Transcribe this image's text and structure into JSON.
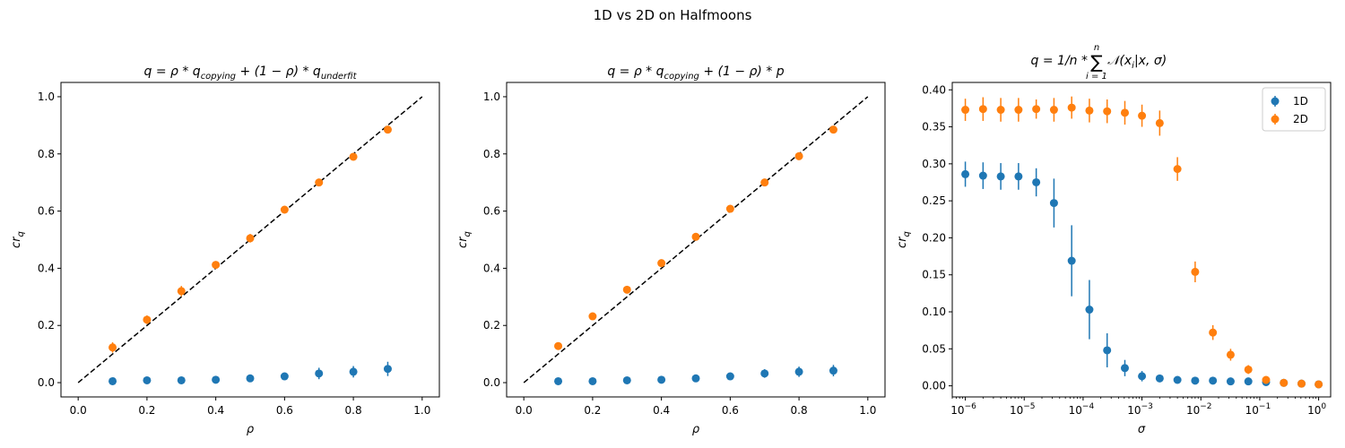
{
  "figure": {
    "suptitle": "1D vs 2D on Halfmoons",
    "colors": {
      "1D": "#1f77b4",
      "2D": "#ff7f0e",
      "reference": "#000000"
    }
  },
  "chart_data": [
    {
      "type": "scatter",
      "title": "q = ρ * q_copying + (1 − ρ) * q_underfit",
      "xlabel": "ρ",
      "ylabel": "cr_q",
      "xlim": [
        -0.05,
        1.05
      ],
      "ylim": [
        -0.05,
        1.05
      ],
      "xticks": [
        0.0,
        0.2,
        0.4,
        0.6,
        0.8,
        1.0
      ],
      "xtick_labels": [
        "0.0",
        "0.2",
        "0.4",
        "0.6",
        "0.8",
        "1.0"
      ],
      "yticks": [
        0.0,
        0.2,
        0.4,
        0.6,
        0.8,
        1.0
      ],
      "ytick_labels": [
        "0.0",
        "0.2",
        "0.4",
        "0.6",
        "0.8",
        "1.0"
      ],
      "reference_line": {
        "x": [
          0,
          1
        ],
        "y": [
          0,
          1
        ],
        "style": "dashed"
      },
      "series": [
        {
          "name": "1D",
          "x": [
            0.1,
            0.2,
            0.3,
            0.4,
            0.5,
            0.6,
            0.7,
            0.8,
            0.9
          ],
          "y": [
            0.005,
            0.008,
            0.008,
            0.01,
            0.015,
            0.022,
            0.032,
            0.038,
            0.048
          ],
          "yerr": [
            0.004,
            0.004,
            0.004,
            0.005,
            0.006,
            0.01,
            0.02,
            0.02,
            0.025
          ]
        },
        {
          "name": "2D",
          "x": [
            0.1,
            0.2,
            0.3,
            0.4,
            0.5,
            0.6,
            0.7,
            0.8,
            0.9
          ],
          "y": [
            0.123,
            0.22,
            0.32,
            0.412,
            0.505,
            0.605,
            0.7,
            0.79,
            0.885
          ],
          "yerr": [
            0.018,
            0.015,
            0.018,
            0.01,
            0.015,
            0.01,
            0.01,
            0.008,
            0.008
          ]
        }
      ]
    },
    {
      "type": "scatter",
      "title": "q = ρ * q_copying + (1 − ρ) * p",
      "xlabel": "ρ",
      "ylabel": "cr_q",
      "xlim": [
        -0.05,
        1.05
      ],
      "ylim": [
        -0.05,
        1.05
      ],
      "xticks": [
        0.0,
        0.2,
        0.4,
        0.6,
        0.8,
        1.0
      ],
      "xtick_labels": [
        "0.0",
        "0.2",
        "0.4",
        "0.6",
        "0.8",
        "1.0"
      ],
      "yticks": [
        0.0,
        0.2,
        0.4,
        0.6,
        0.8,
        1.0
      ],
      "ytick_labels": [
        "0.0",
        "0.2",
        "0.4",
        "0.6",
        "0.8",
        "1.0"
      ],
      "reference_line": {
        "x": [
          0,
          1
        ],
        "y": [
          0,
          1
        ],
        "style": "dashed"
      },
      "series": [
        {
          "name": "1D",
          "x": [
            0.1,
            0.2,
            0.3,
            0.4,
            0.5,
            0.6,
            0.7,
            0.8,
            0.9
          ],
          "y": [
            0.005,
            0.005,
            0.008,
            0.01,
            0.015,
            0.022,
            0.032,
            0.038,
            0.042
          ],
          "yerr": [
            0.004,
            0.004,
            0.004,
            0.005,
            0.006,
            0.01,
            0.015,
            0.018,
            0.02
          ]
        },
        {
          "name": "2D",
          "x": [
            0.1,
            0.2,
            0.3,
            0.4,
            0.5,
            0.6,
            0.7,
            0.8,
            0.9
          ],
          "y": [
            0.128,
            0.232,
            0.325,
            0.418,
            0.51,
            0.608,
            0.7,
            0.792,
            0.885
          ],
          "yerr": [
            0.008,
            0.008,
            0.008,
            0.008,
            0.008,
            0.008,
            0.008,
            0.008,
            0.008
          ]
        }
      ]
    },
    {
      "type": "scatter",
      "title": "q = 1/n * Σ_{i=1}^{n} N(x_i | x, σ)",
      "xlabel": "σ",
      "ylabel": "cr_q",
      "xscale": "log",
      "xlim": [
        6e-07,
        1.6
      ],
      "ylim": [
        -0.015,
        0.41
      ],
      "xticks": [
        1e-06,
        1e-05,
        0.0001,
        0.001,
        0.01,
        0.1,
        1
      ],
      "xtick_labels": [
        {
          "base": "10",
          "exp": "−6"
        },
        {
          "base": "10",
          "exp": "−5"
        },
        {
          "base": "10",
          "exp": "−4"
        },
        {
          "base": "10",
          "exp": "−3"
        },
        {
          "base": "10",
          "exp": "−2"
        },
        {
          "base": "10",
          "exp": "−1"
        },
        {
          "base": "10",
          "exp": "0"
        }
      ],
      "yticks": [
        0.0,
        0.05,
        0.1,
        0.15,
        0.2,
        0.25,
        0.3,
        0.35,
        0.4
      ],
      "ytick_labels": [
        "0.00",
        "0.05",
        "0.10",
        "0.15",
        "0.20",
        "0.25",
        "0.30",
        "0.35",
        "0.40"
      ],
      "legend": {
        "placement": "top-right",
        "entries": [
          "1D",
          "2D"
        ]
      },
      "series": [
        {
          "name": "1D",
          "x": [
            1e-06,
            2e-06,
            4e-06,
            8e-06,
            1.6e-05,
            3.2e-05,
            6.4e-05,
            0.000128,
            0.000256,
            0.000512,
            0.001,
            0.002,
            0.004,
            0.008,
            0.016,
            0.032,
            0.064,
            0.128,
            0.256,
            0.512,
            1.0
          ],
          "y": [
            0.286,
            0.284,
            0.283,
            0.283,
            0.275,
            0.247,
            0.169,
            0.103,
            0.048,
            0.024,
            0.013,
            0.01,
            0.008,
            0.007,
            0.007,
            0.006,
            0.006,
            0.005,
            0.004,
            0.003,
            0.002
          ],
          "yerr": [
            0.017,
            0.018,
            0.018,
            0.018,
            0.019,
            0.033,
            0.048,
            0.04,
            0.023,
            0.011,
            0.007,
            0.004,
            0.004,
            0.004,
            0.004,
            0.004,
            0.004,
            0.004,
            0.003,
            0.003,
            0.003
          ]
        },
        {
          "name": "2D",
          "x": [
            1e-06,
            2e-06,
            4e-06,
            8e-06,
            1.6e-05,
            3.2e-05,
            6.4e-05,
            0.000128,
            0.000256,
            0.000512,
            0.001,
            0.002,
            0.004,
            0.008,
            0.016,
            0.032,
            0.064,
            0.128,
            0.256,
            0.512,
            1.0
          ],
          "y": [
            0.373,
            0.374,
            0.373,
            0.373,
            0.374,
            0.373,
            0.376,
            0.372,
            0.371,
            0.369,
            0.365,
            0.355,
            0.293,
            0.154,
            0.072,
            0.042,
            0.022,
            0.008,
            0.004,
            0.003,
            0.002
          ],
          "yerr": [
            0.015,
            0.016,
            0.016,
            0.016,
            0.013,
            0.016,
            0.015,
            0.016,
            0.016,
            0.016,
            0.015,
            0.017,
            0.016,
            0.014,
            0.01,
            0.008,
            0.006,
            0.004,
            0.003,
            0.003,
            0.003
          ]
        }
      ]
    }
  ]
}
